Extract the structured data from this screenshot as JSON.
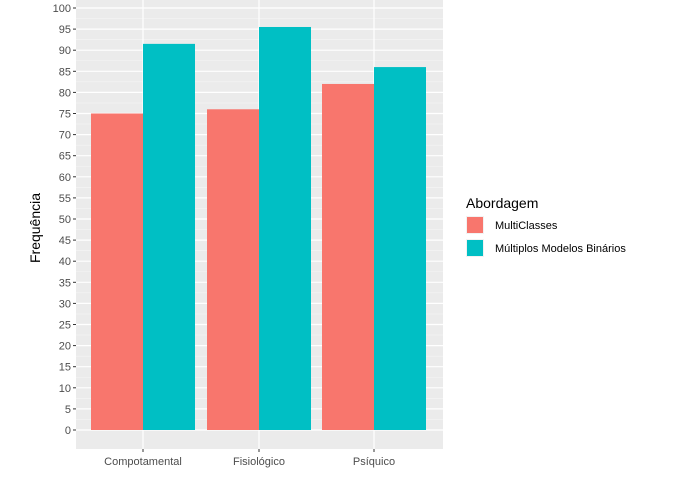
{
  "chart_data": {
    "type": "bar",
    "title": "",
    "xlabel": "",
    "ylabel": "Frequência",
    "ylim": [
      0,
      100
    ],
    "y_ticks": [
      0,
      5,
      10,
      15,
      20,
      25,
      30,
      35,
      40,
      45,
      50,
      55,
      60,
      65,
      70,
      75,
      80,
      85,
      90,
      95,
      100
    ],
    "categories": [
      "Compotamental",
      "Fisiológico",
      "Psíquico"
    ],
    "grid": true,
    "legend": {
      "title": "Abordagem",
      "placement": "right"
    },
    "series": [
      {
        "name": "MultiClasses",
        "color": "#F8766D",
        "values": [
          75,
          76,
          82
        ]
      },
      {
        "name": "Múltiplos Modelos Binários",
        "color": "#00BFC4",
        "values": [
          91.5,
          95.5,
          86
        ]
      }
    ]
  }
}
